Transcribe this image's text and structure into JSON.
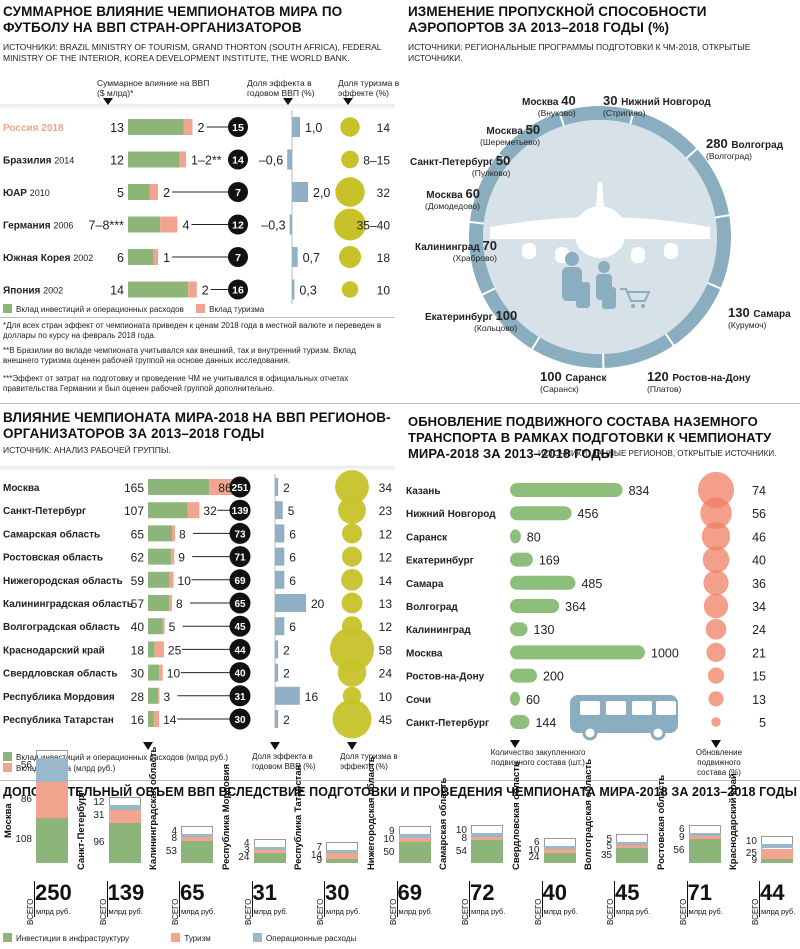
{
  "colors": {
    "invest": "#8db57a",
    "tourism": "#f3a48f",
    "ops": "#9ab8ca",
    "gdp_share_bar": "#8fb0c5",
    "tourism_circle": "#c7c22a",
    "rolling_circle": "#f07d66",
    "ring": "#8aaebf",
    "ring_bg": "#d6e2e8",
    "green_bar": "#8cbf7a",
    "black": "#111111"
  },
  "sec1": {
    "title": "Суммарное влияние чемпионатов мира по футболу на ВВП стран-организаторов",
    "source": "Источники: Brazil Ministry of Tourism, Grand Thorton (South Africa), Federal Ministry of the Interior, Korea Development Institute, The World Bank.",
    "col1": "Суммарное влияние на ВВП ($ млрд)*",
    "col2": "Доля эффекта в годовом ВВП (%)",
    "col3": "Доля туризма в эффекте (%)",
    "legend_invest": "Вклад инвестиций и операционных расходов",
    "legend_tourism": "Вклад туризма",
    "note1": "*Для всех стран эффект от чемпионата приведен к ценам 2018 года в местной валюте и переведен в доллары по курсу на февраль 2018 года.",
    "note2": "**В Бразилии во вкладе чемпионата учитывался как внешний, так и внутренний туризм. Вклад внешнего туризма оценен рабочей группой на основе данных исследования.",
    "note3": "***Эффект от затрат на подготовку и проведение ЧМ не учитывался в официальных отчетах правительства Германии и был оценен рабочей группой дополнительно."
  },
  "sec2": {
    "title": "Изменение пропускной способности аэропортов за 2013–2018 годы (%)",
    "source": "Источники: региональные программы подготовки к ЧМ-2018, открытые источники."
  },
  "sec3": {
    "title": "Влияние чемпионата мира-2018 на ВВП регионов-организаторов за 2013–2018 годы",
    "source": "Источник: анализ рабочей группы.",
    "legend_invest": "Вклад инвестиций и операционных расходов (млрд руб.)",
    "legend_tourism": "Вклад туризма (млрд руб.)",
    "col2": "Доля эффекта в годовом ВВП (%)",
    "col3": "Доля туризма в эффекте (%)"
  },
  "sec4": {
    "title": "Обновление подвижного состава наземного транспорта в рамках подготовки к чемпионату мира-2018 за 2013–2018 годы",
    "source": "Источники: данные регионов, открытые источники.",
    "col1": "Количество закупленного подвижного состава (шт.)",
    "col2": "Обновление подвижного состава (%)"
  },
  "sec5": {
    "title": "Дополнительный объем ВВП вследствие подготовки и проведения чемпионата мира-2018 за 2013–2018 годы",
    "vsego": "ВСЕГО",
    "unit": "млрд руб.",
    "legend_infra": "Инвестиции в инфраструктуру",
    "legend_tourism": "Туризм",
    "legend_ops": "Операционные расходы"
  },
  "chart_data": [
    {
      "type": "bar",
      "title": "Суммарное влияние чемпионатов мира по футболу на ВВП стран-организаторов",
      "categories": [
        "Россия 2018",
        "Бразилия 2014",
        "ЮАР 2010",
        "Германия 2006",
        "Южная Корея 2002",
        "Япония 2002"
      ],
      "categories_text": [
        {
          "name": "Россия",
          "year": "2018"
        },
        {
          "name": "Бразилия",
          "year": "2014"
        },
        {
          "name": "ЮАР",
          "year": "2010"
        },
        {
          "name": "Германия",
          "year": "2006"
        },
        {
          "name": "Южная Корея",
          "year": "2002"
        },
        {
          "name": "Япония",
          "year": "2002"
        }
      ],
      "series": [
        {
          "name": "Вклад инвестиций и операционных расходов",
          "values": [
            13,
            12,
            5,
            7.5,
            6,
            14
          ],
          "labels": [
            "13",
            "12",
            "5",
            "7–8***",
            "6",
            "14"
          ]
        },
        {
          "name": "Вклад туризма",
          "values": [
            2,
            1.5,
            2,
            4,
            1,
            2
          ],
          "labels": [
            "2",
            "1–2**",
            "2",
            "4",
            "1",
            "2"
          ]
        }
      ],
      "totals": [
        15,
        14,
        7,
        12,
        7,
        16
      ],
      "gdp_share_pct": [
        1.0,
        -0.6,
        2.0,
        -0.3,
        0.7,
        0.3
      ],
      "gdp_share_labels": [
        "1,0",
        "–0,6",
        "2,0",
        "–0,3",
        "0,7",
        "0,3"
      ],
      "tourism_share_pct": [
        14,
        11.5,
        32,
        37.5,
        18,
        10
      ],
      "tourism_share_labels": [
        "14",
        "8–15",
        "32",
        "35–40",
        "18",
        "10"
      ]
    },
    {
      "type": "donut",
      "title": "Изменение пропускной способности аэропортов за 2013–2018 годы (%)",
      "airports": [
        {
          "city": "Москва",
          "airport": "(Внуково)",
          "value": 40
        },
        {
          "city": "Нижний Новгород",
          "airport": "(Стригино)",
          "value": 30
        },
        {
          "city": "Волгоград",
          "airport": "(Волгоград)",
          "value": 280
        },
        {
          "city": "Самара",
          "airport": "(Курумоч)",
          "value": 130
        },
        {
          "city": "Ростов-на-Дону",
          "airport": "(Платов)",
          "value": 120
        },
        {
          "city": "Саранск",
          "airport": "(Саранск)",
          "value": 100
        },
        {
          "city": "Екатеринбург",
          "airport": "(Кольцово)",
          "value": 100
        },
        {
          "city": "Калининград",
          "airport": "(Храброво)",
          "value": 70
        },
        {
          "city": "Москва",
          "airport": "(Домодедово)",
          "value": 60
        },
        {
          "city": "Санкт-Петербург",
          "airport": "(Пулково)",
          "value": 50
        },
        {
          "city": "Москва",
          "airport": "(Шереметьево)",
          "value": 50
        }
      ]
    },
    {
      "type": "bar",
      "title": "Влияние чемпионата мира-2018 на ВВП регионов-организаторов за 2013–2018 годы",
      "categories": [
        "Москва",
        "Санкт-Петербург",
        "Самарская область",
        "Ростовская область",
        "Нижегородская область",
        "Калининградская область",
        "Волгоградская область",
        "Краснодарский край",
        "Свердловская область",
        "Республика Мордовия",
        "Республика Татарстан"
      ],
      "series": [
        {
          "name": "Вклад инвестиций и операционных расходов (млрд руб.)",
          "values": [
            165,
            107,
            65,
            62,
            59,
            57,
            40,
            18,
            30,
            28,
            16
          ]
        },
        {
          "name": "Вклад туризма (млрд руб.)",
          "values": [
            86,
            32,
            8,
            9,
            10,
            8,
            5,
            25,
            10,
            3,
            14
          ]
        }
      ],
      "totals": [
        251,
        139,
        73,
        71,
        69,
        65,
        45,
        44,
        40,
        31,
        30
      ],
      "gdp_share_pct": [
        2,
        5,
        6,
        6,
        6,
        20,
        6,
        2,
        2,
        16,
        2
      ],
      "tourism_share_pct": [
        34,
        23,
        12,
        12,
        14,
        13,
        12,
        58,
        24,
        10,
        45
      ]
    },
    {
      "type": "bar",
      "title": "Обновление подвижного состава наземного транспорта",
      "categories": [
        "Казань",
        "Нижний Новгород",
        "Саранск",
        "Екатеринбург",
        "Самара",
        "Волгоград",
        "Калининград",
        "Москва",
        "Ростов-на-Дону",
        "Сочи",
        "Санкт-Петербург"
      ],
      "series": [
        {
          "name": "Количество закупленного подвижного состава (шт.)",
          "values": [
            834,
            456,
            80,
            169,
            485,
            364,
            130,
            1000,
            200,
            60,
            144
          ]
        },
        {
          "name": "Обновление подвижного состава (%)",
          "values": [
            74,
            56,
            46,
            40,
            36,
            34,
            24,
            21,
            15,
            13,
            5
          ]
        }
      ]
    },
    {
      "type": "bar",
      "title": "Дополнительный объем ВВП вследствие подготовки и проведения чемпионата мира-2018 за 2013–2018 годы",
      "categories": [
        "Москва",
        "Санкт-Петербург",
        "Калининградская область",
        "Республика Мордовия",
        "Республика Татарстан",
        "Нижегородская область",
        "Самарская область",
        "Свердловская область",
        "Волгоградская область",
        "Ростовская область",
        "Краснодарский край"
      ],
      "series": [
        {
          "name": "Инвестиции в инфраструктуру",
          "values": [
            108,
            96,
            53,
            24,
            9,
            50,
            54,
            24,
            35,
            56,
            9
          ]
        },
        {
          "name": "Туризм",
          "values": [
            86,
            31,
            8,
            3,
            14,
            10,
            8,
            10,
            5,
            9,
            25
          ]
        },
        {
          "name": "Операционные расходы",
          "values": [
            56,
            12,
            4,
            4,
            7,
            9,
            10,
            6,
            5,
            6,
            10
          ]
        }
      ],
      "totals": [
        250,
        139,
        65,
        31,
        30,
        69,
        72,
        40,
        45,
        71,
        44
      ]
    }
  ]
}
